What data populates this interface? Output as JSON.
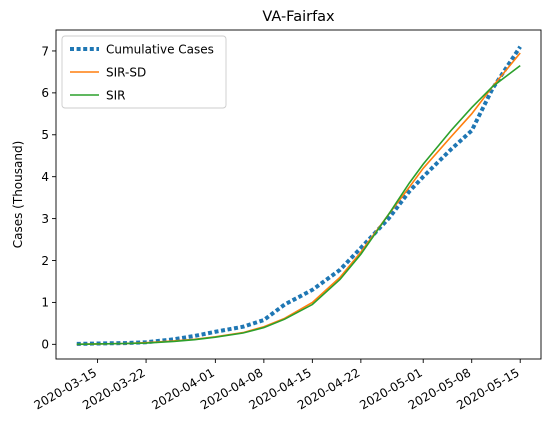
{
  "chart_data": {
    "type": "line",
    "title": "VA-Fairfax",
    "xlabel": "",
    "ylabel": "Cases (Thousand)",
    "x_ticks": [
      "2020-03-15",
      "2020-03-22",
      "2020-04-01",
      "2020-04-08",
      "2020-04-15",
      "2020-04-22",
      "2020-05-01",
      "2020-05-08",
      "2020-05-15"
    ],
    "y_ticks": [
      0,
      1,
      2,
      3,
      4,
      5,
      6,
      7
    ],
    "xlim": [
      "2020-03-09",
      "2020-05-18"
    ],
    "ylim": [
      -0.35,
      7.5
    ],
    "grid": false,
    "legend": "top-left",
    "series": [
      {
        "name": "Cumulative Cases",
        "style": "dotted",
        "color": "#1f77b4",
        "x": [
          "2020-03-12",
          "2020-03-15",
          "2020-03-19",
          "2020-03-22",
          "2020-03-26",
          "2020-03-29",
          "2020-04-01",
          "2020-04-05",
          "2020-04-08",
          "2020-04-11",
          "2020-04-15",
          "2020-04-19",
          "2020-04-22",
          "2020-04-26",
          "2020-04-29",
          "2020-05-01",
          "2020-05-05",
          "2020-05-08",
          "2020-05-11",
          "2020-05-15"
        ],
        "values": [
          0.01,
          0.02,
          0.03,
          0.05,
          0.12,
          0.2,
          0.3,
          0.42,
          0.58,
          0.95,
          1.3,
          1.78,
          2.3,
          3.0,
          3.65,
          4.0,
          4.65,
          5.1,
          6.1,
          7.1
        ]
      },
      {
        "name": "SIR-SD",
        "style": "solid",
        "color": "#ff7f0e",
        "x": [
          "2020-03-12",
          "2020-03-15",
          "2020-03-19",
          "2020-03-22",
          "2020-03-26",
          "2020-03-29",
          "2020-04-01",
          "2020-04-05",
          "2020-04-08",
          "2020-04-11",
          "2020-04-15",
          "2020-04-19",
          "2020-04-22",
          "2020-04-26",
          "2020-04-29",
          "2020-05-01",
          "2020-05-05",
          "2020-05-08",
          "2020-05-11",
          "2020-05-15"
        ],
        "values": [
          0.0,
          0.01,
          0.02,
          0.04,
          0.08,
          0.12,
          0.18,
          0.28,
          0.42,
          0.62,
          1.0,
          1.6,
          2.2,
          3.1,
          3.75,
          4.2,
          4.95,
          5.5,
          6.15,
          6.95
        ]
      },
      {
        "name": "SIR",
        "style": "solid",
        "color": "#2ca02c",
        "x": [
          "2020-03-12",
          "2020-03-15",
          "2020-03-19",
          "2020-03-22",
          "2020-03-26",
          "2020-03-29",
          "2020-04-01",
          "2020-04-05",
          "2020-04-08",
          "2020-04-11",
          "2020-04-15",
          "2020-04-19",
          "2020-04-22",
          "2020-04-26",
          "2020-04-29",
          "2020-05-01",
          "2020-05-05",
          "2020-05-08",
          "2020-05-11",
          "2020-05-15"
        ],
        "values": [
          0.0,
          0.01,
          0.02,
          0.03,
          0.07,
          0.11,
          0.17,
          0.27,
          0.4,
          0.6,
          0.95,
          1.55,
          2.15,
          3.1,
          3.85,
          4.3,
          5.1,
          5.65,
          6.15,
          6.65
        ]
      }
    ]
  }
}
